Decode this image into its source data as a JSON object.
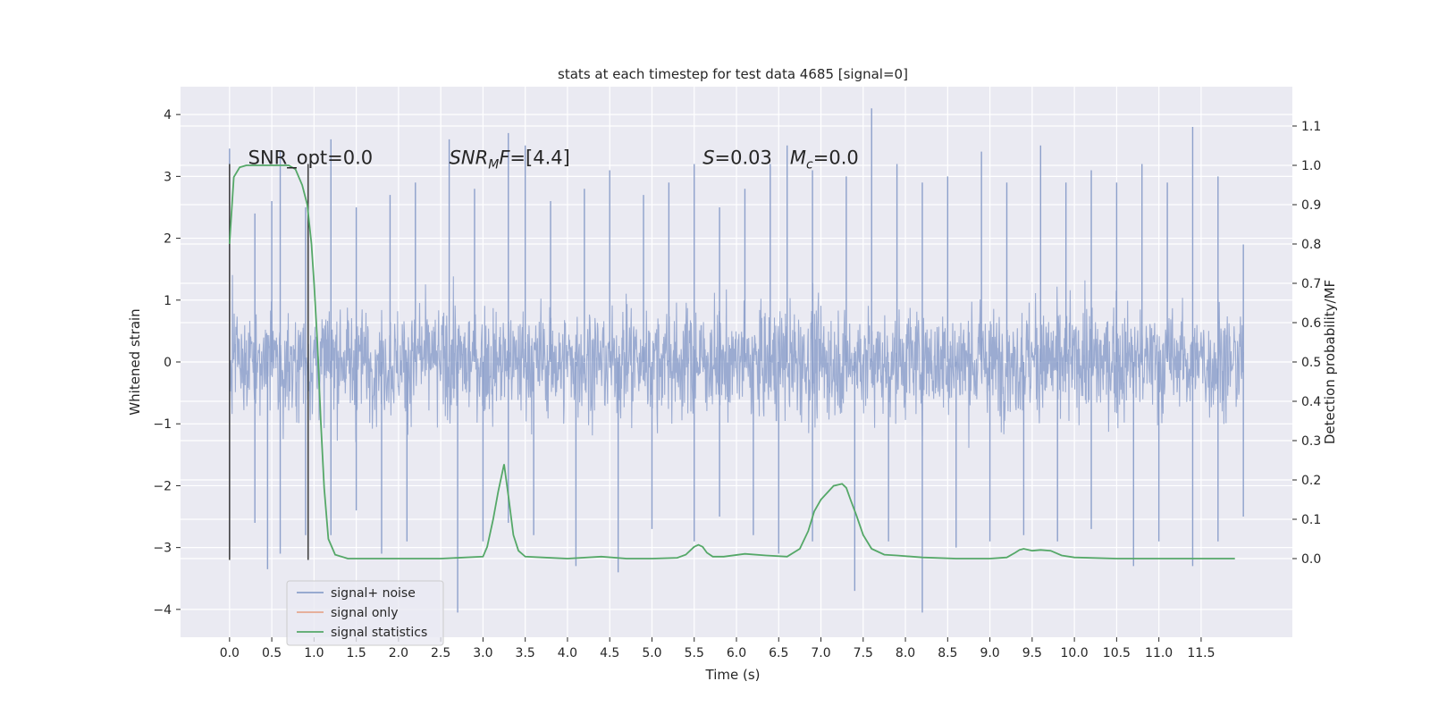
{
  "chart_data": {
    "type": "line",
    "title": "stats at each timestep for test data 4685 [signal=0]",
    "xlabel": "Time (s)",
    "ylabel": "Whitened strain",
    "y2label": "Detection probability/MF",
    "xlim": [
      -0.58,
      12.58
    ],
    "ylim": [
      -4.45,
      4.45
    ],
    "y2lim": [
      -0.2,
      1.2
    ],
    "xticks": [
      0.0,
      0.5,
      1.0,
      1.5,
      2.0,
      2.5,
      3.0,
      3.5,
      4.0,
      4.5,
      5.0,
      5.5,
      6.0,
      6.5,
      7.0,
      7.5,
      8.0,
      8.5,
      9.0,
      9.5,
      10.0,
      10.5,
      11.0,
      11.5
    ],
    "xtick_labels": [
      "0.0",
      "0.5",
      "1.0",
      "1.5",
      "2.0",
      "2.5",
      "3.0",
      "3.5",
      "4.0",
      "4.5",
      "5.0",
      "5.5",
      "6.0",
      "6.5",
      "7.0",
      "7.5",
      "8.0",
      "8.5",
      "9.0",
      "9.5",
      "10.0",
      "10.5",
      "11.0",
      "11.5"
    ],
    "yticks": [
      -4,
      -3,
      -2,
      -1,
      0,
      1,
      2,
      3,
      4
    ],
    "ytick_labels": [
      "−4",
      "−3",
      "−2",
      "−1",
      "0",
      "1",
      "2",
      "3",
      "4"
    ],
    "y2ticks": [
      0.0,
      0.1,
      0.2,
      0.3,
      0.4,
      0.5,
      0.6,
      0.7,
      0.8,
      0.9,
      1.0,
      1.1
    ],
    "y2tick_labels": [
      "0.0",
      "0.1",
      "0.2",
      "0.3",
      "0.4",
      "0.5",
      "0.6",
      "0.7",
      "0.8",
      "0.9",
      "1.0",
      "1.1"
    ],
    "grid": true,
    "legend_placement": "lower-left",
    "series": [
      {
        "name": "signal+ noise",
        "color": "#8da0cb",
        "axis": "left",
        "x_range": [
          0.0,
          12.0
        ],
        "envelope_upper": [
          [
            0.0,
            3.45
          ],
          [
            0.3,
            2.4
          ],
          [
            0.5,
            2.6
          ],
          [
            0.6,
            3.4
          ],
          [
            0.9,
            2.5
          ],
          [
            1.2,
            3.6
          ],
          [
            1.5,
            2.5
          ],
          [
            1.9,
            2.7
          ],
          [
            2.2,
            2.9
          ],
          [
            2.6,
            3.6
          ],
          [
            2.9,
            2.8
          ],
          [
            3.3,
            3.7
          ],
          [
            3.5,
            3.5
          ],
          [
            3.8,
            2.6
          ],
          [
            4.2,
            2.8
          ],
          [
            4.5,
            3.1
          ],
          [
            4.9,
            2.7
          ],
          [
            5.2,
            2.9
          ],
          [
            5.5,
            3.2
          ],
          [
            5.8,
            2.5
          ],
          [
            6.1,
            2.8
          ],
          [
            6.4,
            3.2
          ],
          [
            6.6,
            3.5
          ],
          [
            6.9,
            3.1
          ],
          [
            7.3,
            3.0
          ],
          [
            7.6,
            4.1
          ],
          [
            7.9,
            3.2
          ],
          [
            8.2,
            2.9
          ],
          [
            8.5,
            3.0
          ],
          [
            8.9,
            3.4
          ],
          [
            9.2,
            2.9
          ],
          [
            9.6,
            3.5
          ],
          [
            9.9,
            2.9
          ],
          [
            10.2,
            3.1
          ],
          [
            10.5,
            2.9
          ],
          [
            10.8,
            3.2
          ],
          [
            11.1,
            2.9
          ],
          [
            11.4,
            3.8
          ],
          [
            11.7,
            3.0
          ],
          [
            12.0,
            1.9
          ]
        ],
        "envelope_lower": [
          [
            0.0,
            -3.15
          ],
          [
            0.3,
            -2.6
          ],
          [
            0.45,
            -3.35
          ],
          [
            0.6,
            -3.1
          ],
          [
            0.9,
            -2.8
          ],
          [
            1.2,
            -2.8
          ],
          [
            1.5,
            -2.4
          ],
          [
            1.8,
            -3.1
          ],
          [
            2.1,
            -2.9
          ],
          [
            2.7,
            -4.05
          ],
          [
            3.0,
            -2.9
          ],
          [
            3.3,
            -2.6
          ],
          [
            3.6,
            -2.8
          ],
          [
            4.1,
            -3.3
          ],
          [
            4.6,
            -3.4
          ],
          [
            5.0,
            -2.7
          ],
          [
            5.5,
            -2.9
          ],
          [
            5.8,
            -2.5
          ],
          [
            6.2,
            -2.8
          ],
          [
            6.5,
            -3.1
          ],
          [
            6.9,
            -2.9
          ],
          [
            7.4,
            -3.7
          ],
          [
            7.8,
            -2.9
          ],
          [
            8.2,
            -4.05
          ],
          [
            8.6,
            -3.0
          ],
          [
            9.0,
            -2.9
          ],
          [
            9.4,
            -2.8
          ],
          [
            9.8,
            -2.9
          ],
          [
            10.2,
            -2.7
          ],
          [
            10.7,
            -3.3
          ],
          [
            11.0,
            -2.9
          ],
          [
            11.4,
            -3.3
          ],
          [
            11.7,
            -2.9
          ],
          [
            12.0,
            -2.5
          ]
        ]
      },
      {
        "name": "signal only",
        "color": "#e5a88f",
        "axis": "left",
        "x": [],
        "y": []
      },
      {
        "name": "signal statistics",
        "color": "#55a868",
        "axis": "right",
        "x": [
          0.0,
          0.05,
          0.12,
          0.2,
          0.3,
          0.4,
          0.5,
          0.6,
          0.7,
          0.78,
          0.86,
          0.92,
          0.97,
          1.0,
          1.04,
          1.08,
          1.12,
          1.17,
          1.25,
          1.4,
          1.7,
          2.0,
          2.5,
          3.0,
          3.05,
          3.12,
          3.18,
          3.25,
          3.3,
          3.36,
          3.42,
          3.5,
          3.7,
          4.0,
          4.4,
          4.7,
          5.0,
          5.3,
          5.4,
          5.5,
          5.55,
          5.6,
          5.65,
          5.72,
          5.85,
          6.1,
          6.35,
          6.6,
          6.75,
          6.85,
          6.92,
          7.0,
          7.15,
          7.25,
          7.3,
          7.35,
          7.42,
          7.5,
          7.6,
          7.75,
          7.9,
          8.2,
          8.6,
          9.0,
          9.2,
          9.3,
          9.35,
          9.4,
          9.5,
          9.6,
          9.72,
          9.85,
          10.0,
          10.5,
          11.0,
          11.5,
          11.9
        ],
        "y": [
          0.8,
          0.97,
          0.995,
          1.0,
          1.0,
          1.0,
          1.0,
          1.0,
          1.0,
          0.99,
          0.95,
          0.9,
          0.8,
          0.7,
          0.55,
          0.35,
          0.18,
          0.05,
          0.01,
          0.0,
          0.0,
          0.0,
          0.0,
          0.005,
          0.03,
          0.1,
          0.17,
          0.24,
          0.16,
          0.06,
          0.02,
          0.005,
          0.003,
          0.0,
          0.005,
          0.0,
          0.0,
          0.002,
          0.01,
          0.03,
          0.035,
          0.03,
          0.015,
          0.005,
          0.005,
          0.012,
          0.008,
          0.005,
          0.025,
          0.07,
          0.12,
          0.15,
          0.185,
          0.19,
          0.18,
          0.15,
          0.11,
          0.06,
          0.025,
          0.01,
          0.008,
          0.003,
          0.0,
          0.0,
          0.003,
          0.015,
          0.022,
          0.025,
          0.02,
          0.022,
          0.02,
          0.008,
          0.003,
          0.0,
          0.0,
          0.0,
          0.0
        ]
      }
    ],
    "vlines": [
      0.0,
      0.93
    ],
    "vline_color": "#444444",
    "annotations": [
      {
        "text": "SNR_opt=0.0",
        "x": 0.22,
        "y": 3.2
      },
      {
        "text": "SNR_MF=[4.4]",
        "x": 2.6,
        "y": 3.2,
        "math": "SNR_MF"
      },
      {
        "text": "S=0.03   M_c=0.0",
        "x": 5.6,
        "y": 3.2,
        "math": "S_Mc"
      }
    ]
  }
}
